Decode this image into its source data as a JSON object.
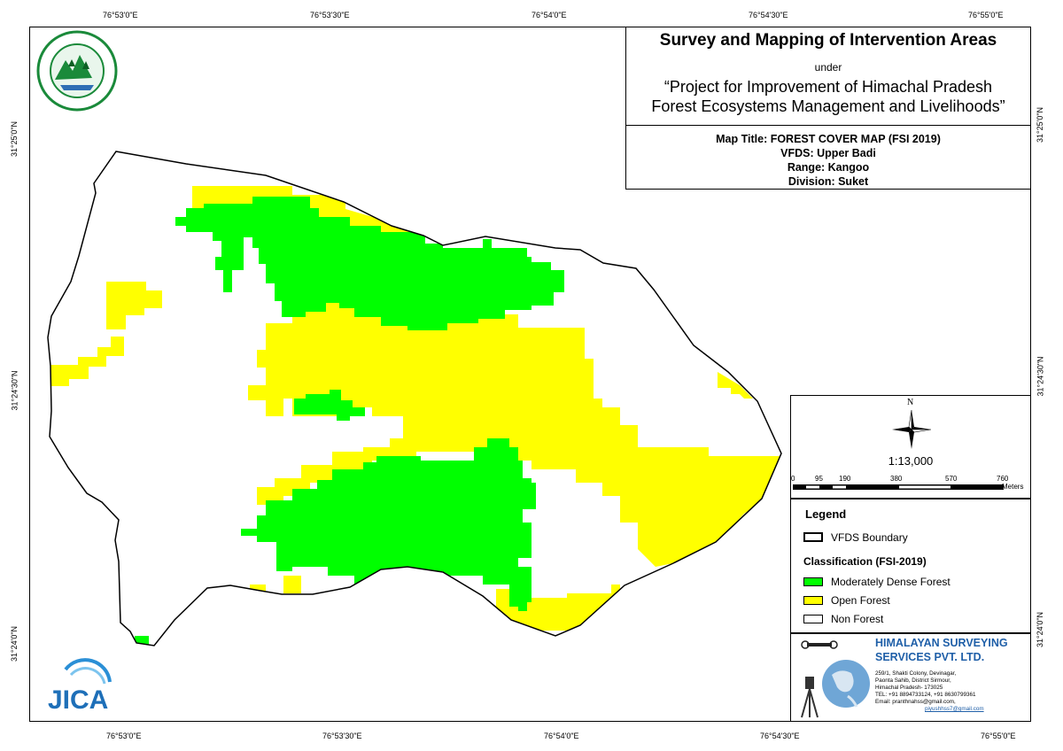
{
  "coordinates": {
    "top": [
      "76°53'0\"E",
      "76°53'30\"E",
      "76°54'0\"E",
      "76°54'30\"E",
      "76°55'0\"E"
    ],
    "bottom": [
      "76°53'0\"E",
      "76°53'30\"E",
      "76°54'0\"E",
      "76°54'30\"E",
      "76°55'0\"E"
    ],
    "left": [
      "31°25'0\"N",
      "31°24'30\"N",
      "31°24'0\"N"
    ],
    "right": [
      "31°25'0\"N",
      "31°24'30\"N",
      "31°24'0\"N"
    ]
  },
  "title_block": {
    "title": "Survey and Mapping of Intervention Areas",
    "under": "under",
    "project_line1": "“Project for Improvement of Himachal Pradesh",
    "project_line2": "Forest Ecosystems Management and Livelihoods”",
    "map_title": "Map Title: FOREST COVER MAP (FSI 2019)",
    "vfds": "VFDS: Upper Badi",
    "range": "Range: Kangoo",
    "division": "Division: Suket"
  },
  "north_arrow": {
    "label": "N"
  },
  "scale": {
    "ratio": "1:13,000",
    "ticks": [
      "0",
      "95",
      "190",
      "380",
      "570",
      "760"
    ],
    "unit": "Meters"
  },
  "legend": {
    "title": "Legend",
    "boundary_label": "VFDS Boundary",
    "classification_title": "Classification (FSI-2019)",
    "classes": [
      {
        "label": "Moderately Dense Forest",
        "color": "#00ff00"
      },
      {
        "label": "Open Forest",
        "color": "#ffff00"
      },
      {
        "label": "Non Forest",
        "color": "#ffffff"
      }
    ]
  },
  "company": {
    "name_line1": "HIMALAYAN SURVEYING",
    "name_line2": "SERVICES PVT. LTD.",
    "address1": "259/1, Shakti Colony, Devinagar,",
    "address2": "Paonta Sahib, District Sirmour,",
    "address3": "Himachal Pradesh- 173025",
    "tel": "TEL: +91 8894733124, +91 8630799361",
    "email1": "Email: pranthnahss@gmail.com,",
    "email2": "piyushhss7@gmail.com",
    "name_color": "#1f5fa8"
  },
  "logos": {
    "jica": "JICA"
  },
  "colors": {
    "dense": "#00ff00",
    "open": "#ffff00",
    "non": "#ffffff"
  }
}
